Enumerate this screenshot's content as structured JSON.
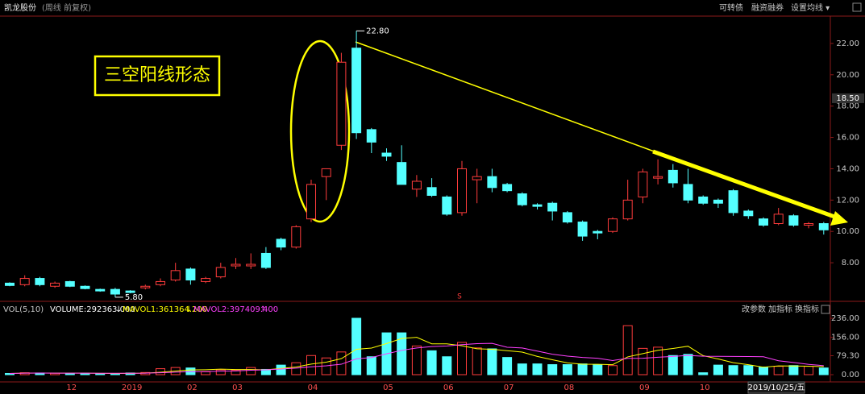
{
  "chart_data": {
    "type": "candlestick",
    "title": "凯龙股份",
    "subtitle": "(周线 前复权)",
    "toolbar": [
      "可转债",
      "融资融券",
      "设置均线 ▾"
    ],
    "annotation": "三空阳线形态",
    "signal": "S",
    "up_color": "#ff3c3c",
    "down_color": "#54ffff",
    "categories": [
      null,
      null,
      null,
      null,
      "12",
      null,
      null,
      null,
      "2019",
      null,
      null,
      null,
      "02",
      null,
      null,
      "03",
      null,
      null,
      null,
      null,
      "04",
      null,
      null,
      null,
      null,
      "05",
      null,
      null,
      null,
      "06",
      null,
      null,
      null,
      "07",
      null,
      null,
      null,
      "08",
      null,
      null,
      null,
      null,
      "09",
      null,
      null,
      null,
      "10",
      null,
      null,
      null,
      null,
      null,
      null,
      null,
      null
    ],
    "open": [
      6.7,
      6.6,
      7.0,
      6.5,
      6.8,
      6.5,
      6.3,
      6.3,
      6.2,
      6.4,
      6.6,
      6.9,
      7.6,
      6.8,
      7.1,
      7.8,
      7.8,
      8.6,
      9.5,
      9.0,
      10.8,
      13.5,
      15.5,
      21.7,
      16.5,
      15.0,
      14.4,
      12.7,
      12.8,
      12.2,
      11.2,
      13.3,
      13.5,
      13.0,
      12.4,
      11.7,
      11.8,
      11.2,
      10.6,
      10.0,
      10.0,
      10.8,
      12.2,
      13.4,
      13.9,
      13.0,
      12.2,
      12.0,
      12.6,
      11.3,
      10.8,
      10.5,
      11.0,
      10.4,
      10.5
    ],
    "high": [
      6.75,
      7.2,
      7.1,
      6.8,
      6.85,
      6.55,
      6.35,
      6.4,
      6.25,
      6.6,
      7.0,
      8.0,
      7.7,
      7.1,
      8.0,
      8.3,
      8.6,
      9.0,
      9.6,
      10.4,
      13.3,
      14.0,
      21.4,
      22.8,
      16.6,
      15.3,
      15.5,
      13.6,
      13.4,
      12.3,
      14.5,
      14.0,
      14.0,
      13.1,
      12.5,
      11.8,
      11.9,
      11.3,
      10.7,
      10.1,
      10.9,
      13.3,
      14.0,
      14.6,
      14.3,
      14.0,
      12.3,
      12.1,
      12.7,
      11.4,
      10.9,
      11.5,
      11.1,
      10.6,
      10.6
    ],
    "low": [
      6.5,
      6.5,
      6.5,
      6.4,
      6.45,
      6.3,
      6.15,
      5.8,
      6.05,
      6.3,
      6.5,
      6.8,
      6.6,
      6.7,
      7.0,
      7.6,
      7.6,
      7.6,
      8.8,
      8.9,
      10.6,
      12.0,
      15.2,
      15.9,
      15.0,
      14.5,
      13.0,
      12.2,
      12.2,
      11.0,
      11.0,
      11.8,
      12.5,
      12.5,
      11.6,
      11.4,
      10.7,
      10.5,
      9.4,
      9.5,
      9.9,
      10.7,
      11.8,
      13.0,
      12.8,
      11.8,
      11.7,
      11.5,
      11.0,
      10.8,
      10.3,
      10.4,
      10.3,
      10.2,
      9.8
    ],
    "close": [
      6.55,
      7.0,
      6.6,
      6.7,
      6.5,
      6.35,
      6.2,
      6.0,
      6.1,
      6.5,
      6.8,
      7.5,
      6.9,
      7.0,
      7.7,
      7.9,
      7.9,
      7.7,
      9.0,
      10.3,
      13.0,
      14.0,
      20.8,
      16.3,
      15.7,
      14.8,
      13.0,
      13.2,
      12.3,
      11.1,
      14.0,
      13.5,
      12.8,
      12.6,
      11.7,
      11.6,
      11.3,
      10.6,
      9.7,
      9.9,
      10.8,
      12.0,
      13.8,
      13.5,
      13.1,
      12.0,
      11.8,
      11.8,
      11.2,
      11.0,
      10.4,
      11.1,
      10.4,
      10.5,
      10.1
    ],
    "max_label": {
      "value": 22.8,
      "label": "22.80"
    },
    "min_label": {
      "value": 5.8,
      "label": "5.80"
    },
    "current_price": {
      "value": 18.5,
      "label": "18.50"
    },
    "ylim": [
      5.64,
      23.64
    ],
    "yticks": [
      {
        "value": 8,
        "label": "8.00"
      },
      {
        "value": 10,
        "label": "10.00"
      },
      {
        "value": 12,
        "label": "12.00"
      },
      {
        "value": 14,
        "label": "14.00"
      },
      {
        "value": 16,
        "label": "16.00"
      },
      {
        "value": 18,
        "label": "18.00"
      },
      {
        "value": 20,
        "label": "20.00"
      },
      {
        "value": 22,
        "label": "22.00"
      }
    ],
    "cursor_date": "2019/10/25/五",
    "volume": {
      "header": [
        "VOL(5,10)",
        "VOLUME:292363.000",
        "↓",
        "MAVOL1:361364.200",
        "↓",
        "MAVOL2:397409.400",
        "↑"
      ],
      "toolbar": [
        "改参数",
        "加指标",
        "换指标"
      ],
      "values": [
        5,
        8,
        7,
        6,
        5,
        6,
        4,
        5,
        7,
        9,
        25,
        30,
        28,
        12,
        20,
        18,
        30,
        22,
        40,
        50,
        80,
        70,
        95,
        236,
        75,
        175,
        175,
        120,
        100,
        75,
        135,
        112,
        108,
        72,
        45,
        45,
        42,
        42,
        45,
        42,
        38,
        205,
        110,
        115,
        80,
        85,
        8,
        40,
        38,
        38,
        32,
        35,
        38,
        35,
        28
      ],
      "ylim": [
        -23.6,
        259.6
      ],
      "yticks": [
        {
          "value": 0,
          "label": "0.00"
        },
        {
          "value": 79.3,
          "label": "79.30"
        },
        {
          "value": 156,
          "label": "156.00"
        },
        {
          "value": 236,
          "label": "236.00"
        }
      ]
    }
  }
}
